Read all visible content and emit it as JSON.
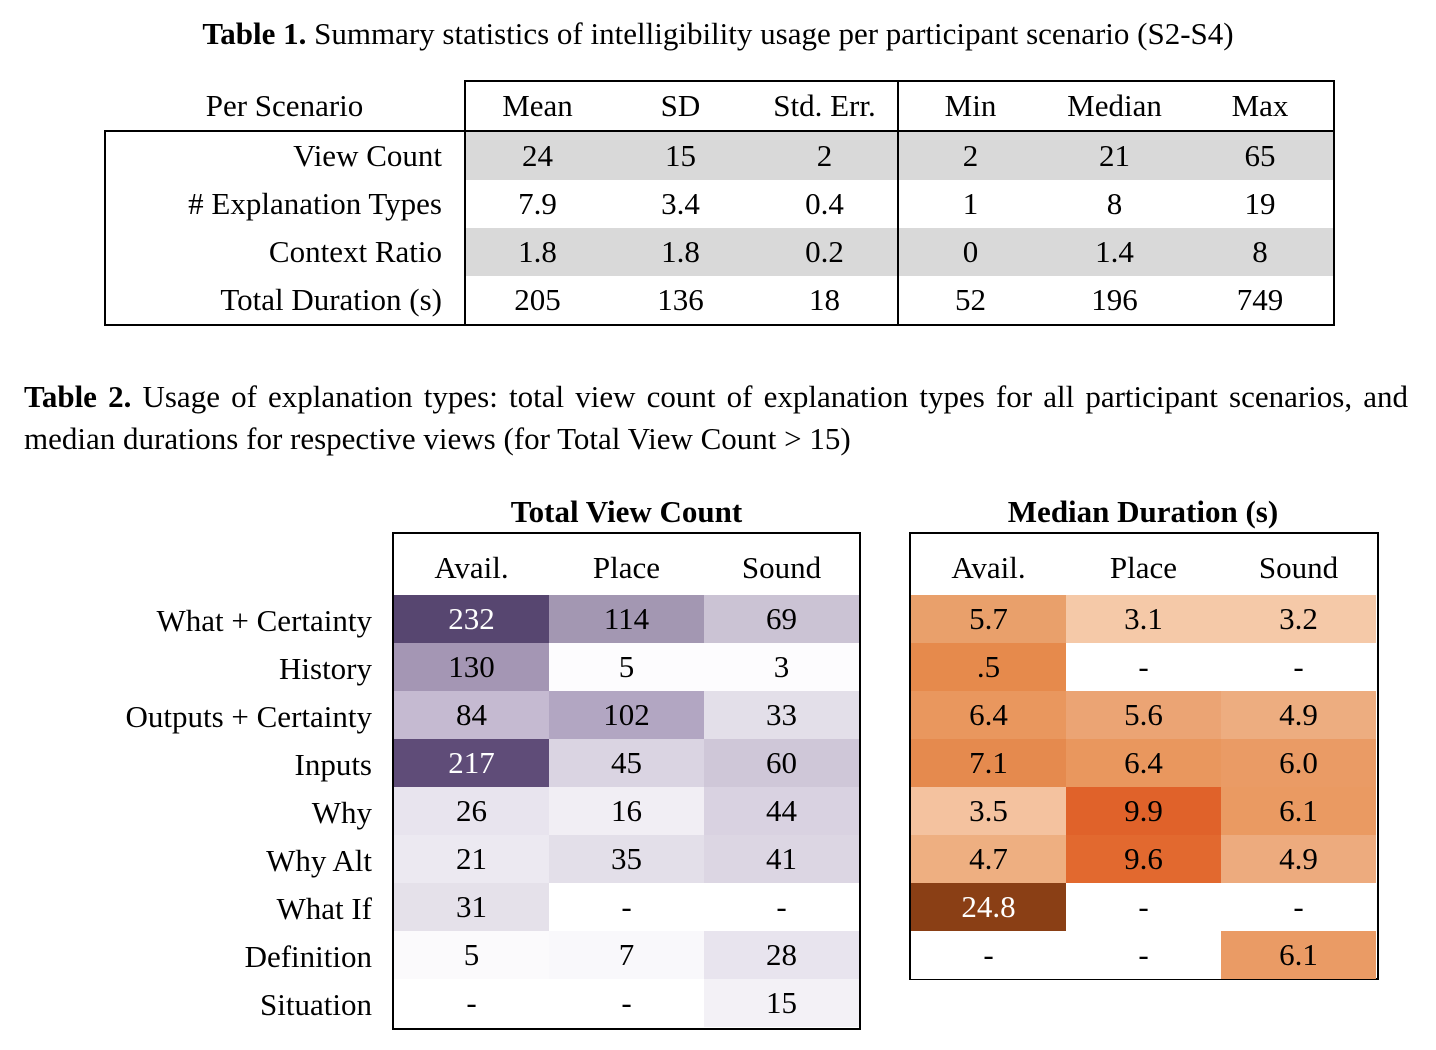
{
  "table1": {
    "caption_label": "Table 1.",
    "caption_text": " Summary statistics of intelligibility usage per participant scenario (S2-S4)",
    "header": [
      "Per Scenario",
      "Mean",
      "SD",
      "Std. Err.",
      "Min",
      "Median",
      "Max"
    ],
    "rows": [
      {
        "label": "View Count",
        "values": [
          "24",
          "15",
          "2",
          "2",
          "21",
          "65"
        ]
      },
      {
        "label": "# Explanation Types",
        "values": [
          "7.9",
          "3.4",
          "0.4",
          "1",
          "8",
          "19"
        ]
      },
      {
        "label": "Context Ratio",
        "values": [
          "1.8",
          "1.8",
          "0.2",
          "0",
          "1.4",
          "8"
        ]
      },
      {
        "label": "Total Duration (s)",
        "values": [
          "205",
          "136",
          "18",
          "52",
          "196",
          "749"
        ]
      }
    ]
  },
  "table2": {
    "caption_label": "Table 2.",
    "caption_text": " Usage of explanation types: total view count of explanation types for all participant scenarios, and median durations for respective views (for Total View Count > 15)",
    "row_labels": [
      "What + Certainty",
      "History",
      "Outputs + Certainty",
      "Inputs",
      "Why",
      "Why Alt",
      "What If",
      "Definition",
      "Situation"
    ],
    "count_group": {
      "title": "Total View Count",
      "columns": [
        "Avail.",
        "Place",
        "Sound"
      ],
      "rows": [
        [
          "232",
          "114",
          "69"
        ],
        [
          "130",
          "5",
          "3"
        ],
        [
          "84",
          "102",
          "33"
        ],
        [
          "217",
          "45",
          "60"
        ],
        [
          "26",
          "16",
          "44"
        ],
        [
          "21",
          "35",
          "41"
        ],
        [
          "31",
          "-",
          "-"
        ],
        [
          "5",
          "7",
          "28"
        ],
        [
          "-",
          "-",
          "15"
        ]
      ],
      "colors": [
        [
          "#574670",
          "#a397b2",
          "#cbc3d4"
        ],
        [
          "#a496b4",
          "#fdfcfe",
          "#fdfcfe"
        ],
        [
          "#c5bad1",
          "#b2a6c2",
          "#e3dfe9"
        ],
        [
          "#5f4c78",
          "#dad4e2",
          "#cfc7d8"
        ],
        [
          "#e8e4ee",
          "#f1eef4",
          "#d9d2e1"
        ],
        [
          "#ece9f1",
          "#e3dfe9",
          "#dcd6e3"
        ],
        [
          "#e5e1ea",
          "#ffffff",
          "#ffffff"
        ],
        [
          "#fbfafc",
          "#f9f8fb",
          "#e8e4ee"
        ],
        [
          "#ffffff",
          "#ffffff",
          "#f3f1f6"
        ]
      ]
    },
    "duration_group": {
      "title": "Median Duration (s)",
      "columns": [
        "Avail.",
        "Place",
        "Sound"
      ],
      "rows": [
        [
          "5.7",
          "3.1",
          "3.2"
        ],
        [
          ".5",
          "-",
          "-"
        ],
        [
          "6.4",
          "5.6",
          "4.9"
        ],
        [
          "7.1",
          "6.4",
          "6.0"
        ],
        [
          "3.5",
          "9.9",
          "6.1"
        ],
        [
          "4.7",
          "9.6",
          "4.9"
        ],
        [
          "24.8",
          "-",
          "-"
        ],
        [
          "-",
          "-",
          "6.1"
        ],
        []
      ],
      "colors": [
        [
          "#e9a06b",
          "#f5c9a8",
          "#f5c9a8"
        ],
        [
          "#e68a4c",
          "#ffffff",
          "#ffffff"
        ],
        [
          "#e9975e",
          "#eba474",
          "#edad80"
        ],
        [
          "#e58a4e",
          "#e9975e",
          "#ea9b65"
        ],
        [
          "#f4c29f",
          "#e0622a",
          "#ea9a62"
        ],
        [
          "#eeaf81",
          "#e2692f",
          "#edab7e"
        ],
        [
          "#8a3f15",
          "#ffffff",
          "#ffffff"
        ],
        [
          "#ffffff",
          "#ffffff",
          "#ea9b65"
        ],
        []
      ]
    }
  }
}
